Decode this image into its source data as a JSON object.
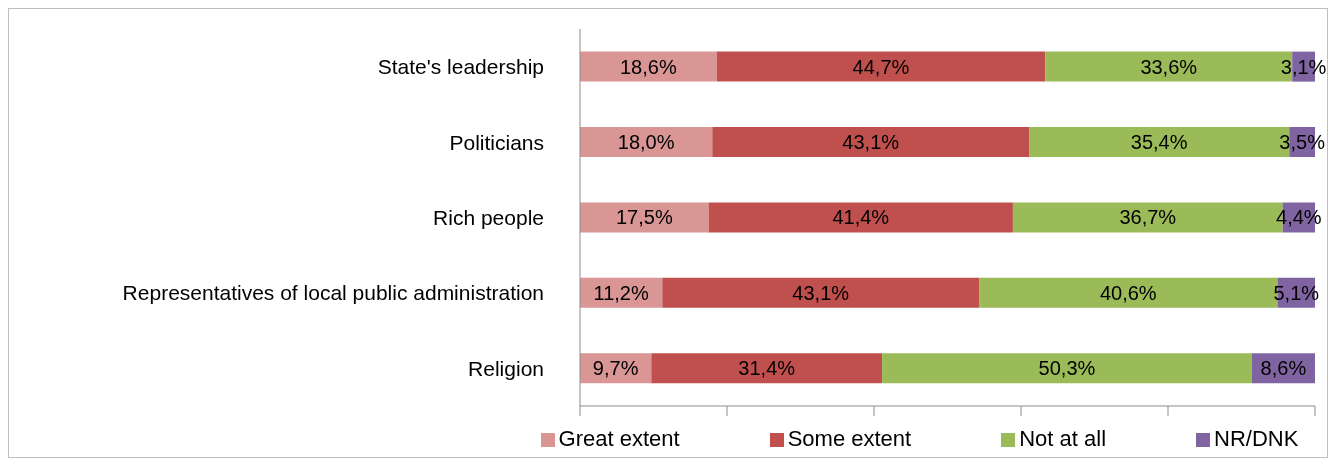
{
  "chart_data": {
    "type": "bar",
    "orientation": "horizontal",
    "stacked": true,
    "categories": [
      "State's leadership",
      "Politicians",
      "Rich people",
      "Representatives of local public administration",
      "Religion"
    ],
    "series": [
      {
        "name": "Great extent",
        "color": "#d99694",
        "values": [
          18.6,
          18.0,
          17.5,
          11.2,
          9.7
        ],
        "value_labels": [
          "18,6%",
          "18,0%",
          "17,5%",
          "11,2%",
          "9,7%"
        ]
      },
      {
        "name": "Some extent",
        "color": "#c0504d",
        "values": [
          44.7,
          43.1,
          41.4,
          43.1,
          31.4
        ],
        "value_labels": [
          "44,7%",
          "43,1%",
          "41,4%",
          "43,1%",
          "31,4%"
        ]
      },
      {
        "name": "Not at all",
        "color": "#9bbb59",
        "values": [
          33.6,
          35.4,
          36.7,
          40.6,
          50.3
        ],
        "value_labels": [
          "33,6%",
          "35,4%",
          "36,7%",
          "40,6%",
          "50,3%"
        ]
      },
      {
        "name": "NR/DNK",
        "color": "#8064a2",
        "values": [
          3.1,
          3.5,
          4.4,
          5.1,
          8.6
        ],
        "value_labels": [
          "3,1%",
          "3,5%",
          "4,4%",
          "5,1%",
          "8,6%"
        ]
      }
    ],
    "xlim": [
      0,
      100
    ],
    "xticks": [
      {
        "value": 0,
        "label": null
      },
      {
        "value": 20,
        "label": null
      },
      {
        "value": 40,
        "label": null
      },
      {
        "value": 60,
        "label": null
      },
      {
        "value": 80,
        "label": null
      },
      {
        "value": 100,
        "label": null
      }
    ],
    "tick_labels": "y",
    "grid": false,
    "legend": "bottom"
  }
}
